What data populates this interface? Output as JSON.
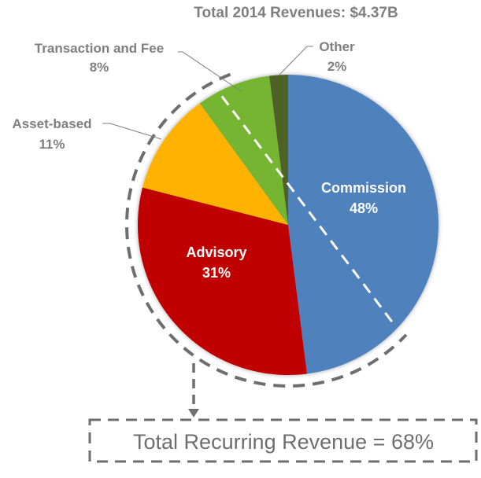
{
  "chart_data": {
    "type": "pie",
    "title": "Total 2014 Revenues: $4.37B",
    "unit": "%",
    "slices": [
      {
        "label": "Commission",
        "value": 48,
        "display": "48%",
        "color": "#4f81bd",
        "label_position": "inside"
      },
      {
        "label": "Advisory",
        "value": 31,
        "display": "31%",
        "color": "#c00000",
        "label_position": "inside"
      },
      {
        "label": "Asset-based",
        "value": 11,
        "display": "11%",
        "color": "#ffb300",
        "label_position": "outside"
      },
      {
        "label": "Transaction and Fee",
        "value": 8,
        "display": "8%",
        "color": "#76b531",
        "label_position": "outside"
      },
      {
        "label": "Other",
        "value": 2,
        "display": "2%",
        "color": "#4f6228",
        "label_position": "outside"
      }
    ],
    "annotation": {
      "text": "Total Recurring Revenue = 68%",
      "value": 68,
      "style": "dashed box with arrow from dashed arc"
    }
  },
  "colors": {
    "text_gray": "#7f7f7f",
    "dash_gray": "#6e6e6e"
  }
}
